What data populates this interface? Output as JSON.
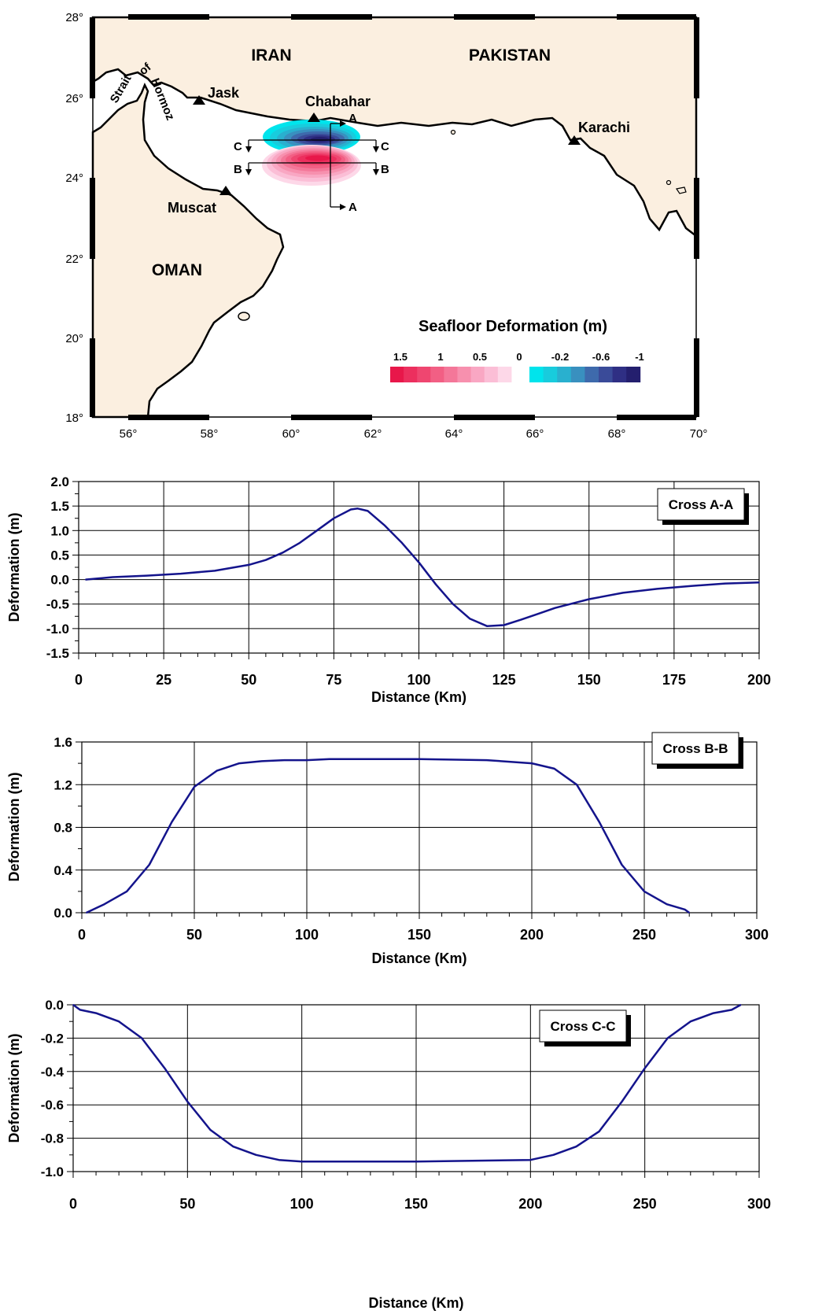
{
  "map": {
    "lon_ticks": [
      "56°",
      "58°",
      "60°",
      "62°",
      "64°",
      "66°",
      "68°",
      "70°"
    ],
    "lat_ticks": [
      "28°",
      "26°",
      "24°",
      "22°",
      "20°",
      "18°"
    ],
    "countries": [
      "IRAN",
      "PAKISTAN",
      "OMAN"
    ],
    "cities": [
      "Jask",
      "Chabahar",
      "Karachi",
      "Muscat"
    ],
    "strait_words": [
      "Strait",
      "of",
      "Hormoz"
    ],
    "section_labels": {
      "a": "A",
      "b": "B",
      "c": "C"
    },
    "legend": {
      "title": "Seafloor Deformation (m)",
      "positive_labels": [
        "1.5",
        "1",
        "0.5",
        "0"
      ],
      "negative_labels": [
        "-0.2",
        "-0.6",
        "-1"
      ],
      "positive_colors": [
        "#e8174a",
        "#ec2f5e",
        "#ef4670",
        "#f25f84",
        "#f47799",
        "#f790ae",
        "#f9a7c3",
        "#fbbed6",
        "#fdd8e8"
      ],
      "negative_colors": [
        "#00e4ec",
        "#18ccdd",
        "#29b0cf",
        "#3990bf",
        "#3e6aac",
        "#3a4b99",
        "#2f2f84",
        "#241f6e"
      ]
    }
  },
  "chart_data": [
    {
      "type": "line",
      "title": "",
      "legend_label": "Cross A-A",
      "xlabel": "Distance (Km)",
      "ylabel": "Deformation (m)",
      "xlim": [
        0,
        200
      ],
      "ylim": [
        -1.5,
        2.0
      ],
      "x_ticks": [
        "0",
        "25",
        "50",
        "75",
        "100",
        "125",
        "150",
        "175",
        "200"
      ],
      "y_ticks": [
        "2.0",
        "1.5",
        "1.0",
        "0.5",
        "0.0",
        "-0.5",
        "-1.0",
        "-1.5"
      ],
      "grid": true,
      "line_color": "#14148c",
      "x": [
        2,
        10,
        20,
        30,
        40,
        50,
        55,
        60,
        65,
        70,
        75,
        80,
        82,
        85,
        90,
        95,
        100,
        105,
        110,
        115,
        120,
        125,
        130,
        135,
        140,
        150,
        160,
        170,
        180,
        190,
        200
      ],
      "y": [
        0.0,
        0.05,
        0.08,
        0.12,
        0.18,
        0.3,
        0.4,
        0.55,
        0.75,
        1.0,
        1.25,
        1.43,
        1.45,
        1.4,
        1.1,
        0.75,
        0.35,
        -0.1,
        -0.5,
        -0.8,
        -0.95,
        -0.93,
        -0.82,
        -0.7,
        -0.58,
        -0.4,
        -0.27,
        -0.19,
        -0.13,
        -0.08,
        -0.06
      ]
    },
    {
      "type": "line",
      "title": "",
      "legend_label": "Cross B-B",
      "xlabel": "Distance (Km)",
      "ylabel": "Deformation (m)",
      "xlim": [
        0,
        300
      ],
      "ylim": [
        0.0,
        1.6
      ],
      "x_ticks": [
        "0",
        "50",
        "100",
        "150",
        "200",
        "250",
        "300"
      ],
      "y_ticks": [
        "1.6",
        "1.2",
        "0.8",
        "0.4",
        "0.0"
      ],
      "grid": true,
      "line_color": "#14148c",
      "x": [
        2,
        10,
        20,
        30,
        40,
        50,
        60,
        70,
        80,
        90,
        100,
        110,
        150,
        180,
        200,
        210,
        220,
        230,
        240,
        250,
        260,
        268,
        270
      ],
      "y": [
        0.0,
        0.08,
        0.2,
        0.45,
        0.85,
        1.18,
        1.33,
        1.4,
        1.42,
        1.43,
        1.43,
        1.44,
        1.44,
        1.43,
        1.4,
        1.35,
        1.2,
        0.85,
        0.45,
        0.2,
        0.08,
        0.03,
        0.0
      ]
    },
    {
      "type": "line",
      "title": "",
      "legend_label": "Cross C-C",
      "xlabel": "Distance (Km)",
      "ylabel": "Deformation (m)",
      "xlim": [
        0,
        300
      ],
      "ylim": [
        -1.0,
        0.0
      ],
      "x_ticks": [
        "0",
        "50",
        "100",
        "150",
        "200",
        "250",
        "300"
      ],
      "y_ticks": [
        "0.0",
        "-0.2",
        "-0.4",
        "-0.6",
        "-0.8",
        "-1.0"
      ],
      "grid": true,
      "line_color": "#14148c",
      "x": [
        0,
        3,
        10,
        20,
        30,
        40,
        50,
        60,
        70,
        80,
        90,
        100,
        150,
        200,
        210,
        220,
        230,
        240,
        250,
        260,
        270,
        280,
        288,
        292
      ],
      "y": [
        0.0,
        -0.03,
        -0.05,
        -0.1,
        -0.2,
        -0.38,
        -0.58,
        -0.75,
        -0.85,
        -0.9,
        -0.93,
        -0.94,
        -0.94,
        -0.93,
        -0.9,
        -0.85,
        -0.76,
        -0.58,
        -0.38,
        -0.2,
        -0.1,
        -0.05,
        -0.03,
        0.0
      ]
    }
  ]
}
